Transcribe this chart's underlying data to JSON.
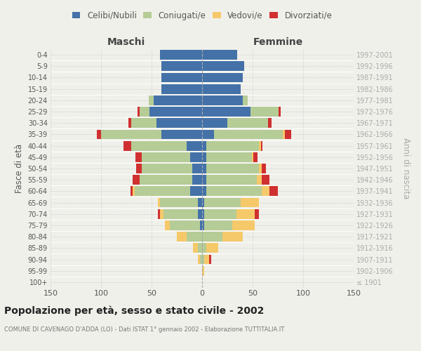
{
  "age_groups": [
    "100+",
    "95-99",
    "90-94",
    "85-89",
    "80-84",
    "75-79",
    "70-74",
    "65-69",
    "60-64",
    "55-59",
    "50-54",
    "45-49",
    "40-44",
    "35-39",
    "30-34",
    "25-29",
    "20-24",
    "15-19",
    "10-14",
    "5-9",
    "0-4"
  ],
  "birth_years": [
    "≤ 1901",
    "1902-1906",
    "1907-1911",
    "1912-1916",
    "1917-1921",
    "1922-1926",
    "1927-1931",
    "1932-1936",
    "1937-1941",
    "1942-1946",
    "1947-1951",
    "1952-1956",
    "1957-1961",
    "1962-1966",
    "1967-1971",
    "1972-1976",
    "1977-1981",
    "1982-1986",
    "1987-1991",
    "1992-1996",
    "1997-2001"
  ],
  "maschi": {
    "celibi": [
      0,
      0,
      0,
      0,
      0,
      2,
      4,
      4,
      12,
      10,
      10,
      12,
      15,
      40,
      45,
      52,
      48,
      40,
      40,
      40,
      42
    ],
    "coniugati": [
      0,
      0,
      2,
      4,
      15,
      30,
      34,
      38,
      55,
      52,
      50,
      48,
      55,
      60,
      25,
      10,
      5,
      0,
      0,
      0,
      0
    ],
    "vedovi": [
      0,
      0,
      2,
      5,
      10,
      5,
      4,
      2,
      2,
      0,
      0,
      0,
      0,
      0,
      0,
      0,
      0,
      0,
      0,
      0,
      0
    ],
    "divorziati": [
      0,
      0,
      0,
      0,
      0,
      0,
      2,
      0,
      2,
      7,
      5,
      6,
      8,
      4,
      3,
      2,
      0,
      0,
      0,
      0,
      0
    ]
  },
  "femmine": {
    "nubili": [
      0,
      0,
      0,
      0,
      0,
      2,
      2,
      2,
      4,
      4,
      4,
      4,
      4,
      12,
      25,
      48,
      40,
      38,
      40,
      42,
      35
    ],
    "coniugate": [
      0,
      0,
      2,
      4,
      20,
      28,
      32,
      36,
      55,
      50,
      52,
      45,
      52,
      68,
      40,
      28,
      5,
      0,
      0,
      0,
      0
    ],
    "vedove": [
      0,
      2,
      5,
      12,
      20,
      22,
      18,
      18,
      8,
      5,
      3,
      2,
      2,
      2,
      0,
      0,
      0,
      0,
      0,
      0,
      0
    ],
    "divorziate": [
      0,
      0,
      2,
      0,
      0,
      0,
      4,
      0,
      8,
      8,
      4,
      4,
      2,
      6,
      4,
      2,
      0,
      0,
      0,
      0,
      0
    ]
  },
  "colors": {
    "celibi": "#4472a8",
    "coniugati": "#b5cc96",
    "vedovi": "#f5c96a",
    "divorziati": "#d03030"
  },
  "xlim": 150,
  "title": "Popolazione per età, sesso e stato civile - 2002",
  "subtitle": "COMUNE DI CAVENAGO D'ADDA (LO) - Dati ISTAT 1° gennaio 2002 - Elaborazione TUTTITALIA.IT",
  "ylabel_left": "Fasce di età",
  "ylabel_right": "Anni di nascita",
  "legend_labels": [
    "Celibi/Nubili",
    "Coniugati/e",
    "Vedovi/e",
    "Divorziati/e"
  ],
  "maschi_label": "Maschi",
  "femmine_label": "Femmine",
  "bg_color": "#f0f0eb",
  "bar_height": 0.85
}
